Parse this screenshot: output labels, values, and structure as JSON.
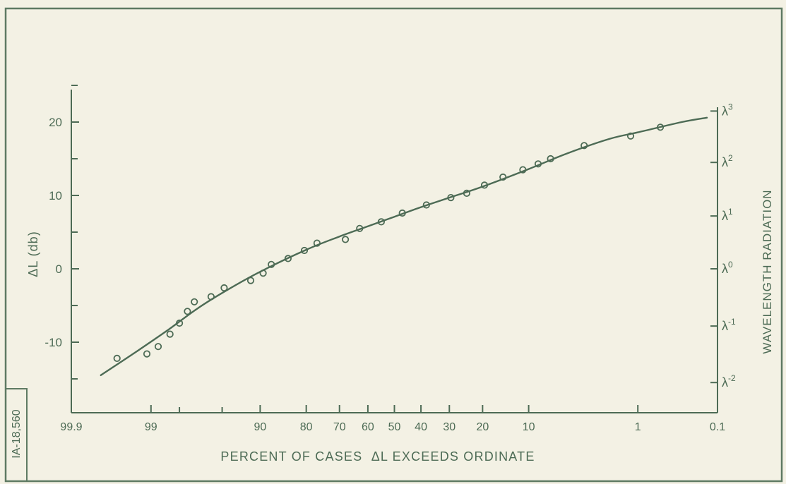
{
  "colors": {
    "ink": "#4d6b55",
    "paper": "#f3f1e4",
    "frame": "#5e7a63"
  },
  "figure_id": "IA-18,560",
  "chart_data": {
    "type": "line",
    "title": "",
    "xlabel": "PERCENT OF CASES  ΔL EXCEEDS ORDINATE",
    "ylabel": "ΔL (db)",
    "y2label": "WAVELENGTH RADIATION",
    "x_scale": "probability",
    "x_direction": "decreasing",
    "xlim": [
      99.9,
      0.1
    ],
    "ylim": [
      -19,
      25
    ],
    "x_ticks": [
      {
        "value": 99.9,
        "label": "99.9"
      },
      {
        "value": 99,
        "label": "99"
      },
      {
        "value": 90,
        "label": "90"
      },
      {
        "value": 80,
        "label": "80"
      },
      {
        "value": 70,
        "label": "70"
      },
      {
        "value": 60,
        "label": "60"
      },
      {
        "value": 50,
        "label": "50"
      },
      {
        "value": 40,
        "label": "40"
      },
      {
        "value": 30,
        "label": "30"
      },
      {
        "value": 20,
        "label": "20"
      },
      {
        "value": 10,
        "label": "10"
      },
      {
        "value": 1,
        "label": "1"
      },
      {
        "value": 0.1,
        "label": "0.1"
      }
    ],
    "x_minor_ticks": [
      98,
      95
    ],
    "y_ticks": [
      {
        "value": 20,
        "label": "20"
      },
      {
        "value": 10,
        "label": "10"
      },
      {
        "value": 0,
        "label": "0"
      },
      {
        "value": -10,
        "label": "-10"
      }
    ],
    "y_minor_ticks": [
      25,
      15,
      5,
      -5,
      -15
    ],
    "y2_ticks": [
      {
        "value": 21.5,
        "base": "λ",
        "exp": "3"
      },
      {
        "value": 14.5,
        "base": "λ",
        "exp": "2"
      },
      {
        "value": 7.2,
        "base": "λ",
        "exp": "1"
      },
      {
        "value": 0,
        "base": "λ",
        "exp": "0"
      },
      {
        "value": -7.8,
        "base": "λ",
        "exp": "-1"
      },
      {
        "value": -15.5,
        "base": "λ",
        "exp": "-2"
      }
    ],
    "grid": false,
    "points": [
      {
        "x": 99.6,
        "y": -12.2
      },
      {
        "x": 99.1,
        "y": -11.6
      },
      {
        "x": 98.8,
        "y": -10.6
      },
      {
        "x": 98.4,
        "y": -8.9
      },
      {
        "x": 98.0,
        "y": -7.4
      },
      {
        "x": 97.6,
        "y": -5.8
      },
      {
        "x": 97.2,
        "y": -4.5
      },
      {
        "x": 96.0,
        "y": -3.8
      },
      {
        "x": 94.8,
        "y": -2.6
      },
      {
        "x": 91.5,
        "y": -1.6
      },
      {
        "x": 89.5,
        "y": -0.6
      },
      {
        "x": 88.0,
        "y": 0.6
      },
      {
        "x": 84.5,
        "y": 1.4
      },
      {
        "x": 80.5,
        "y": 2.5
      },
      {
        "x": 77.0,
        "y": 3.5
      },
      {
        "x": 68.0,
        "y": 4.0
      },
      {
        "x": 63.0,
        "y": 5.5
      },
      {
        "x": 55.0,
        "y": 6.4
      },
      {
        "x": 47.0,
        "y": 7.6
      },
      {
        "x": 38.0,
        "y": 8.7
      },
      {
        "x": 29.5,
        "y": 9.7
      },
      {
        "x": 24.5,
        "y": 10.3
      },
      {
        "x": 19.5,
        "y": 11.4
      },
      {
        "x": 15.0,
        "y": 12.5
      },
      {
        "x": 11.0,
        "y": 13.5
      },
      {
        "x": 8.5,
        "y": 14.3
      },
      {
        "x": 6.8,
        "y": 15.0
      },
      {
        "x": 3.5,
        "y": 16.8
      },
      {
        "x": 1.2,
        "y": 18.1
      },
      {
        "x": 0.55,
        "y": 19.3
      }
    ],
    "curve": [
      {
        "x": 99.75,
        "y": -14.5
      },
      {
        "x": 99.3,
        "y": -11.2
      },
      {
        "x": 98.5,
        "y": -8.4
      },
      {
        "x": 97.0,
        "y": -5.4
      },
      {
        "x": 94.5,
        "y": -2.9
      },
      {
        "x": 90.0,
        "y": -0.4
      },
      {
        "x": 80.0,
        "y": 2.6
      },
      {
        "x": 70.0,
        "y": 4.4
      },
      {
        "x": 60.0,
        "y": 5.8
      },
      {
        "x": 50.0,
        "y": 7.1
      },
      {
        "x": 40.0,
        "y": 8.4
      },
      {
        "x": 30.0,
        "y": 9.7
      },
      {
        "x": 20.0,
        "y": 11.2
      },
      {
        "x": 10.0,
        "y": 13.6
      },
      {
        "x": 5.0,
        "y": 15.7
      },
      {
        "x": 2.0,
        "y": 17.7
      },
      {
        "x": 1.0,
        "y": 18.6
      },
      {
        "x": 0.3,
        "y": 20.0
      },
      {
        "x": 0.14,
        "y": 20.6
      }
    ]
  }
}
